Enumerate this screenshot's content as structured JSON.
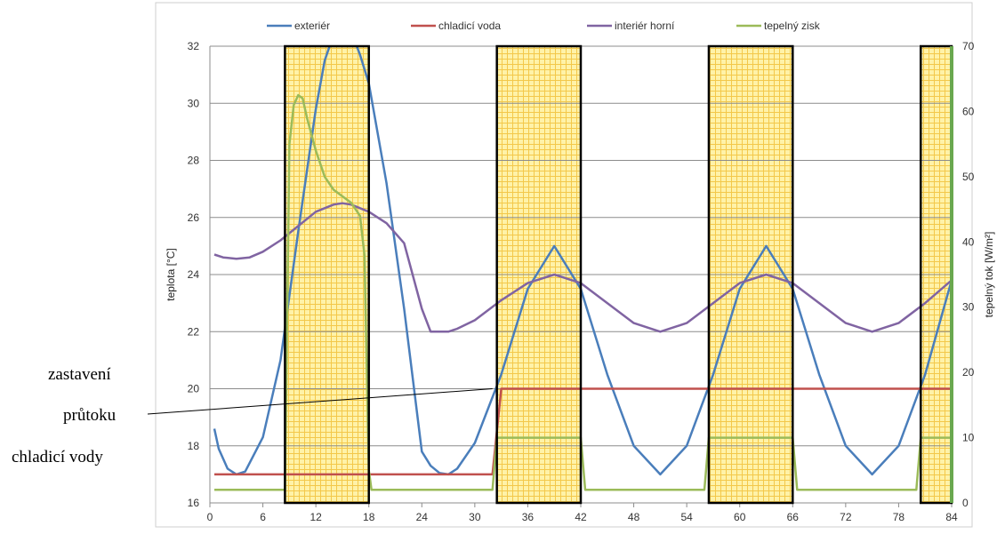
{
  "chart_data": {
    "type": "line",
    "legend_position": "top",
    "grid": true,
    "xlim": [
      0,
      84
    ],
    "ylim": [
      16,
      32
    ],
    "y2lim": [
      0,
      70
    ],
    "xticks": [
      0,
      6,
      12,
      18,
      24,
      30,
      36,
      42,
      48,
      54,
      60,
      66,
      72,
      78,
      84
    ],
    "yticks": [
      16,
      18,
      20,
      22,
      24,
      26,
      28,
      30,
      32
    ],
    "y2ticks": [
      0,
      10,
      20,
      30,
      40,
      50,
      60,
      70
    ],
    "ylabel": "teplota [°C]",
    "y2label": "tepelný tok [W/m²]",
    "highlight_bands": [
      [
        8.5,
        18
      ],
      [
        32.5,
        42
      ],
      [
        56.5,
        66
      ],
      [
        80.5,
        84
      ]
    ],
    "annotation": {
      "lines": [
        "zastavení",
        "průtoku",
        "chladicí vody"
      ],
      "points_to": {
        "x": 32,
        "y": 20
      }
    },
    "series": [
      {
        "name": "exteriér",
        "axis": "left",
        "color": "#4a7ebb",
        "x": [
          0.5,
          1,
          2,
          3,
          4,
          6,
          8,
          10,
          12,
          13,
          14,
          15,
          16,
          17,
          18,
          20,
          22,
          24,
          25,
          26,
          27,
          28,
          30,
          33,
          36,
          39,
          42,
          45,
          48,
          51,
          54,
          57,
          60,
          63,
          66,
          69,
          72,
          75,
          78,
          81,
          84
        ],
        "y": [
          18.6,
          17.9,
          17.2,
          17.0,
          17.1,
          18.3,
          21.0,
          25.5,
          29.8,
          31.5,
          32.4,
          32.7,
          32.5,
          31.7,
          30.7,
          27.2,
          22.8,
          17.8,
          17.3,
          17.05,
          17.0,
          17.2,
          18.1,
          20.5,
          23.5,
          25.0,
          23.5,
          20.5,
          18.0,
          17.0,
          18.0,
          20.5,
          23.5,
          25.0,
          23.5,
          20.5,
          18.0,
          17.0,
          18.0,
          20.5,
          23.8
        ]
      },
      {
        "name": "chladicí voda",
        "axis": "left",
        "color": "#c0504d",
        "x": [
          0.5,
          32,
          33,
          84
        ],
        "y": [
          17.0,
          17.0,
          20.0,
          20.0
        ]
      },
      {
        "name": "interiér horní",
        "axis": "left",
        "color": "#8064a2",
        "x": [
          0.5,
          1.5,
          3,
          4.5,
          6,
          8,
          10,
          12,
          14,
          15,
          16,
          18,
          20,
          22,
          24,
          25,
          26,
          27,
          28,
          30,
          33,
          36,
          39,
          42,
          45,
          48,
          51,
          54,
          57,
          60,
          63,
          66,
          69,
          72,
          75,
          78,
          81,
          84
        ],
        "y": [
          24.7,
          24.6,
          24.55,
          24.6,
          24.8,
          25.2,
          25.7,
          26.2,
          26.45,
          26.5,
          26.45,
          26.2,
          25.8,
          25.1,
          22.8,
          22.0,
          22.0,
          22.0,
          22.1,
          22.4,
          23.1,
          23.7,
          24.0,
          23.7,
          23.0,
          22.3,
          22.0,
          22.3,
          23.0,
          23.7,
          24.0,
          23.7,
          23.0,
          22.3,
          22.0,
          22.3,
          23.0,
          23.8
        ]
      },
      {
        "name": "tepelný zisk",
        "axis": "right",
        "color": "#9bbb59",
        "x": [
          0.5,
          8.5,
          9,
          9.5,
          10,
          10.5,
          11,
          12,
          13,
          14,
          15,
          16,
          17,
          17.5,
          18,
          18.3,
          32,
          32.5,
          42,
          42.5,
          56,
          56.5,
          66,
          66.5,
          80,
          80.5,
          84
        ],
        "y": [
          2,
          2,
          55,
          61,
          62.5,
          62,
          59,
          54,
          50,
          48,
          47,
          46,
          44,
          38,
          5,
          2,
          2,
          10,
          10,
          2,
          2,
          10,
          10,
          2,
          2,
          10,
          10
        ]
      }
    ]
  }
}
